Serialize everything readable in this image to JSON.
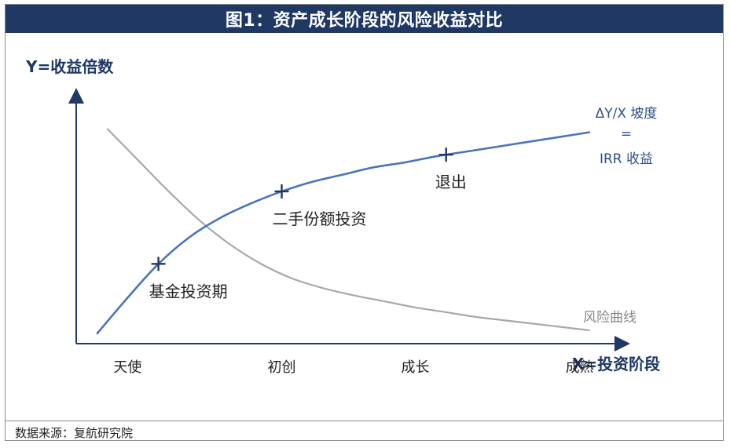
{
  "title": "图1：资产成长阶段的风险收益对比",
  "source": "数据来源：复航研究院",
  "chart_data": {
    "type": "line",
    "ylabel": "Y=收益倍数",
    "xlabel": "X=投资阶段",
    "categories": [
      "天使",
      "初创",
      "成长",
      "成熟"
    ],
    "xlim": [
      0,
      5.3
    ],
    "ylim": [
      0,
      10
    ],
    "series": [
      {
        "name": "",
        "color": "#4a74b8",
        "x": [
          0.2,
          0.5,
          0.8,
          1.1,
          1.4,
          1.7,
          2.0,
          2.3,
          2.6,
          2.9,
          3.2,
          3.5,
          3.8,
          4.1,
          4.4,
          4.7,
          5.0
        ],
        "y": [
          0.4,
          1.9,
          3.3,
          4.4,
          5.2,
          5.8,
          6.3,
          6.7,
          7.0,
          7.3,
          7.5,
          7.75,
          7.95,
          8.15,
          8.35,
          8.55,
          8.75
        ]
      },
      {
        "name": "风险曲线",
        "color": "#a8a8a8",
        "x": [
          0.3,
          0.6,
          0.9,
          1.2,
          1.5,
          1.8,
          2.1,
          2.4,
          2.7,
          3.0,
          3.3,
          3.6,
          3.9,
          4.2,
          4.5,
          4.8,
          5.0
        ],
        "y": [
          8.9,
          7.6,
          6.3,
          5.1,
          4.1,
          3.3,
          2.7,
          2.3,
          2.0,
          1.75,
          1.5,
          1.3,
          1.1,
          0.95,
          0.8,
          0.65,
          0.55
        ]
      }
    ],
    "markers": [
      {
        "label": "基金投资期",
        "x": 0.8,
        "y": 3.3
      },
      {
        "label": "二手份额投资",
        "x": 2.0,
        "y": 6.3
      },
      {
        "label": "退出",
        "x": 3.6,
        "y": 7.82
      }
    ],
    "annotation": [
      "ΔY/X 坡度",
      "=",
      "IRR 收益"
    ]
  }
}
